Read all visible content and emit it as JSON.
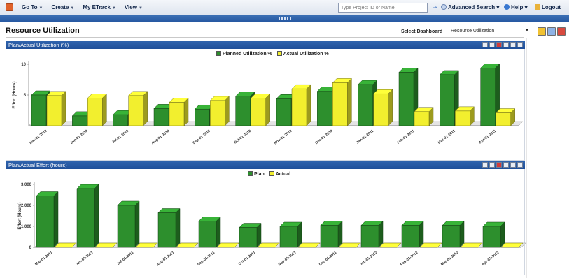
{
  "toolbar": {
    "menu": [
      {
        "label": "Go To"
      },
      {
        "label": "Create"
      },
      {
        "label": "My ETrack"
      },
      {
        "label": "View"
      }
    ],
    "search_placeholder": "Type Project ID or Name",
    "advanced_search": "Advanced Search",
    "help": "Help",
    "logout": "Logout"
  },
  "page": {
    "title": "Resource Utilization",
    "dashboard_label": "Select Dashboard",
    "dashboard_value": "Resource Utilization"
  },
  "colors": {
    "planned": "#2d8f2d",
    "actual": "#f2ef2e",
    "header_blue": "#2456a0"
  },
  "chart_data": [
    {
      "type": "bar",
      "title": "Plan/Actual Utilization (%)",
      "ylabel": "Effort (Hours)",
      "legend_position": "top-center",
      "categories": [
        "Mar-01-2010",
        "Jun-01-2010",
        "Jul-01-2010",
        "Aug-01-2010",
        "Sep-01-2010",
        "Oct-01-2010",
        "Nov-01-2010",
        "Dec-01-2010",
        "Jan-01-2011",
        "Feb-01-2011",
        "Mar-01-2011",
        "Apr-01-2011"
      ],
      "yticks": [
        "10",
        "5"
      ],
      "ylim": [
        0,
        10
      ],
      "series": [
        {
          "name": "Planned Utilization %",
          "values": [
            5.0,
            1.6,
            1.8,
            2.8,
            2.7,
            4.8,
            4.4,
            5.6,
            6.7,
            8.7,
            8.3,
            9.4
          ]
        },
        {
          "name": "Actual Utilization %",
          "values": [
            4.9,
            4.5,
            4.9,
            3.8,
            4.1,
            4.5,
            6.0,
            7.0,
            5.2,
            2.3,
            2.4,
            2.1
          ]
        }
      ]
    },
    {
      "type": "bar",
      "title": "Plan/Actual Effort (hours)",
      "ylabel": "Effort (Hours)",
      "legend_position": "top-center",
      "categories": [
        "Mar-01-2011",
        "Jun-01-2011",
        "Jul-01-2011",
        "Aug-01-2011",
        "Sep-01-2011",
        "Oct-01-2011",
        "Nov-01-2011",
        "Dec-01-2011",
        "Jan-01-2012",
        "Feb-01-2012",
        "Mar-01-2012",
        "Apr-01-2012"
      ],
      "yticks": [
        "3,000",
        "2,000",
        "1,000",
        "0"
      ],
      "ylim": [
        0,
        3000
      ],
      "series": [
        {
          "name": "Plan",
          "values": [
            2450,
            2800,
            2000,
            1650,
            1250,
            950,
            1000,
            1050,
            1050,
            1050,
            1050,
            1000
          ]
        },
        {
          "name": "Actual",
          "values": [
            0,
            0,
            0,
            0,
            0,
            0,
            0,
            0,
            0,
            0,
            0,
            0
          ]
        }
      ]
    }
  ]
}
